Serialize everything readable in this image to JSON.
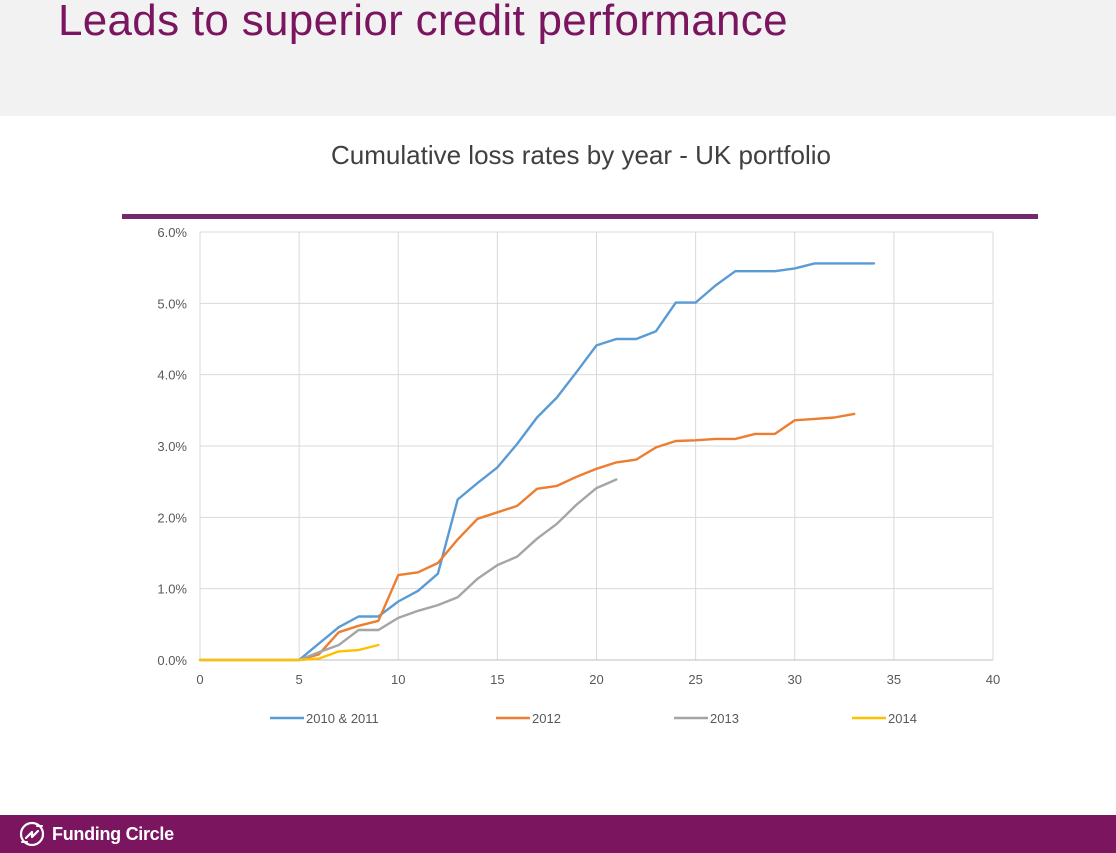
{
  "slide": {
    "title": "Leads to superior credit performance",
    "brand": "Funding Circle"
  },
  "colors": {
    "accent": "#7b1560",
    "divider": "#722a6d"
  },
  "icons": {
    "logo": "funding-circle-logo-icon"
  },
  "chart_data": {
    "type": "line",
    "title": "Cumulative loss rates by year - UK portfolio",
    "xlabel": "",
    "ylabel": "",
    "xlim": [
      0,
      40
    ],
    "ylim": [
      0,
      0.06
    ],
    "xticks": [
      "0",
      "5",
      "10",
      "15",
      "20",
      "25",
      "30",
      "35",
      "40"
    ],
    "yticks": [
      "0.0%",
      "1.0%",
      "2.0%",
      "3.0%",
      "4.0%",
      "5.0%",
      "6.0%"
    ],
    "grid": true,
    "legend_position": "bottom",
    "series": [
      {
        "name": "2010 & 2011",
        "color": "#5b9bd5",
        "points": [
          [
            0,
            0
          ],
          [
            1,
            0
          ],
          [
            2,
            0
          ],
          [
            3,
            0
          ],
          [
            4,
            0
          ],
          [
            5,
            0
          ],
          [
            6,
            0.0023
          ],
          [
            7,
            0.0046
          ],
          [
            8,
            0.0061
          ],
          [
            9,
            0.0061
          ],
          [
            10,
            0.0082
          ],
          [
            11,
            0.0097
          ],
          [
            12,
            0.0121
          ],
          [
            13,
            0.0225
          ],
          [
            14,
            0.0248
          ],
          [
            15,
            0.027
          ],
          [
            16,
            0.0303
          ],
          [
            17,
            0.034
          ],
          [
            18,
            0.0368
          ],
          [
            19,
            0.0404
          ],
          [
            20,
            0.0441
          ],
          [
            21,
            0.045
          ],
          [
            22,
            0.045
          ],
          [
            23,
            0.0461
          ],
          [
            24,
            0.0501
          ],
          [
            25,
            0.0501
          ],
          [
            26,
            0.0525
          ],
          [
            27,
            0.0545
          ],
          [
            28,
            0.0545
          ],
          [
            29,
            0.0545
          ],
          [
            30,
            0.0549
          ],
          [
            31,
            0.0556
          ],
          [
            32,
            0.0556
          ],
          [
            33,
            0.0556
          ],
          [
            34,
            0.0556
          ]
        ]
      },
      {
        "name": "2012",
        "color": "#ed7d31",
        "points": [
          [
            5,
            0
          ],
          [
            6,
            0.0008
          ],
          [
            7,
            0.0039
          ],
          [
            8,
            0.0048
          ],
          [
            9,
            0.0055
          ],
          [
            10,
            0.0119
          ],
          [
            11,
            0.0123
          ],
          [
            12,
            0.0136
          ],
          [
            13,
            0.0169
          ],
          [
            14,
            0.0198
          ],
          [
            15,
            0.0207
          ],
          [
            16,
            0.0216
          ],
          [
            17,
            0.024
          ],
          [
            18,
            0.0244
          ],
          [
            19,
            0.0257
          ],
          [
            20,
            0.0268
          ],
          [
            21,
            0.0277
          ],
          [
            22,
            0.0281
          ],
          [
            23,
            0.0298
          ],
          [
            24,
            0.0307
          ],
          [
            25,
            0.0308
          ],
          [
            26,
            0.031
          ],
          [
            27,
            0.031
          ],
          [
            28,
            0.0317
          ],
          [
            29,
            0.0317
          ],
          [
            30,
            0.0336
          ],
          [
            31,
            0.0338
          ],
          [
            32,
            0.034
          ],
          [
            33,
            0.0345
          ]
        ]
      },
      {
        "name": "2013",
        "color": "#a5a5a5",
        "points": [
          [
            5,
            0
          ],
          [
            6,
            0.0011
          ],
          [
            7,
            0.0021
          ],
          [
            8,
            0.0042
          ],
          [
            9,
            0.0042
          ],
          [
            10,
            0.0059
          ],
          [
            11,
            0.0069
          ],
          [
            12,
            0.0077
          ],
          [
            13,
            0.0088
          ],
          [
            14,
            0.0114
          ],
          [
            15,
            0.0133
          ],
          [
            16,
            0.0145
          ],
          [
            17,
            0.017
          ],
          [
            18,
            0.0191
          ],
          [
            19,
            0.0218
          ],
          [
            20,
            0.0241
          ],
          [
            21,
            0.0253
          ]
        ]
      },
      {
        "name": "2014",
        "color": "#ffc000",
        "points": [
          [
            0,
            0
          ],
          [
            1,
            0
          ],
          [
            2,
            0
          ],
          [
            3,
            0
          ],
          [
            4,
            0
          ],
          [
            5,
            0
          ],
          [
            6,
            0.0002
          ],
          [
            7,
            0.0012
          ],
          [
            8,
            0.0014
          ],
          [
            9,
            0.0021
          ]
        ]
      }
    ]
  }
}
